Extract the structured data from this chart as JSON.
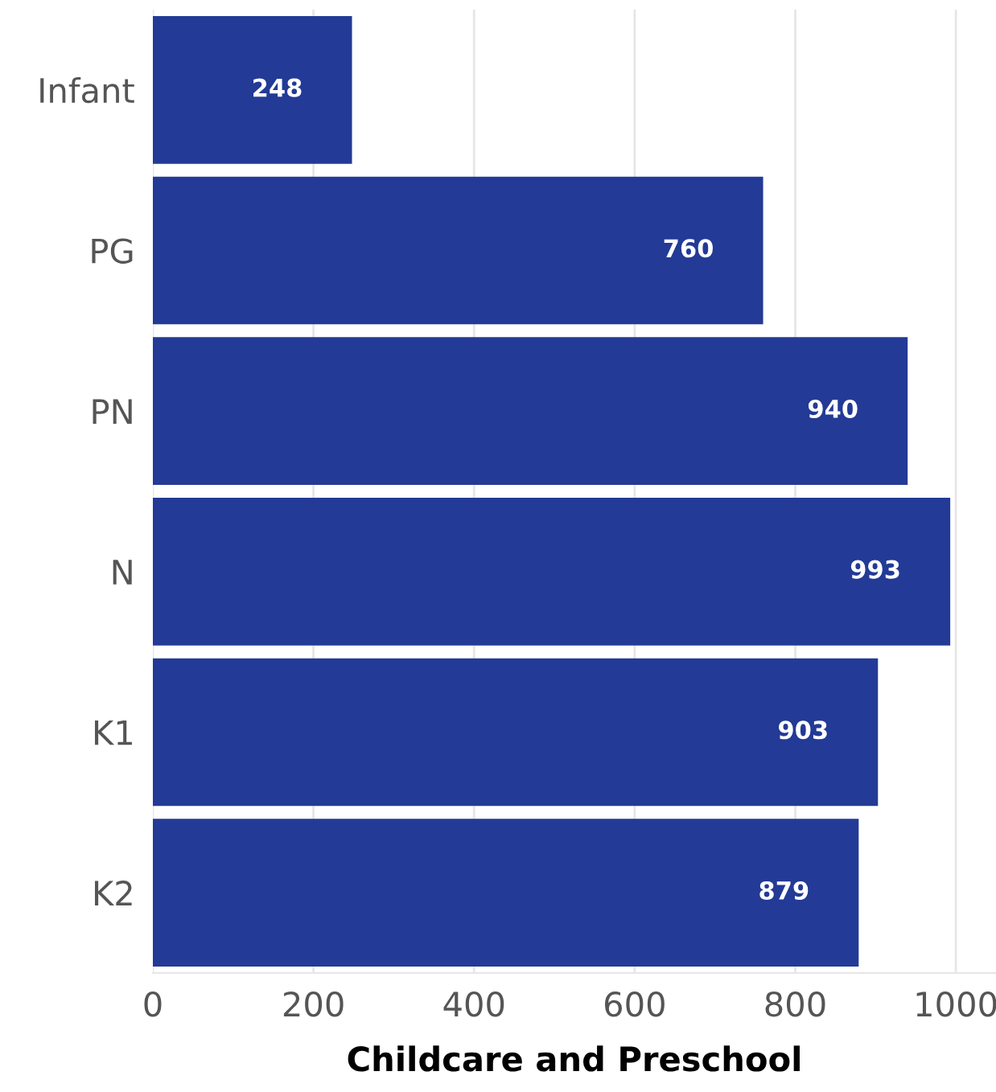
{
  "chart_data": {
    "type": "bar",
    "orientation": "horizontal",
    "xlabel": "Childcare and Preschool",
    "categories": [
      "Infant",
      "PG",
      "PN",
      "N",
      "K1",
      "K2"
    ],
    "values": [
      248,
      760,
      940,
      993,
      903,
      879
    ],
    "color": "#233a96",
    "xlim": [
      0,
      1050
    ],
    "xticks": [
      0,
      200,
      400,
      600,
      800,
      1000
    ],
    "grid": "x",
    "data_labels": true
  }
}
